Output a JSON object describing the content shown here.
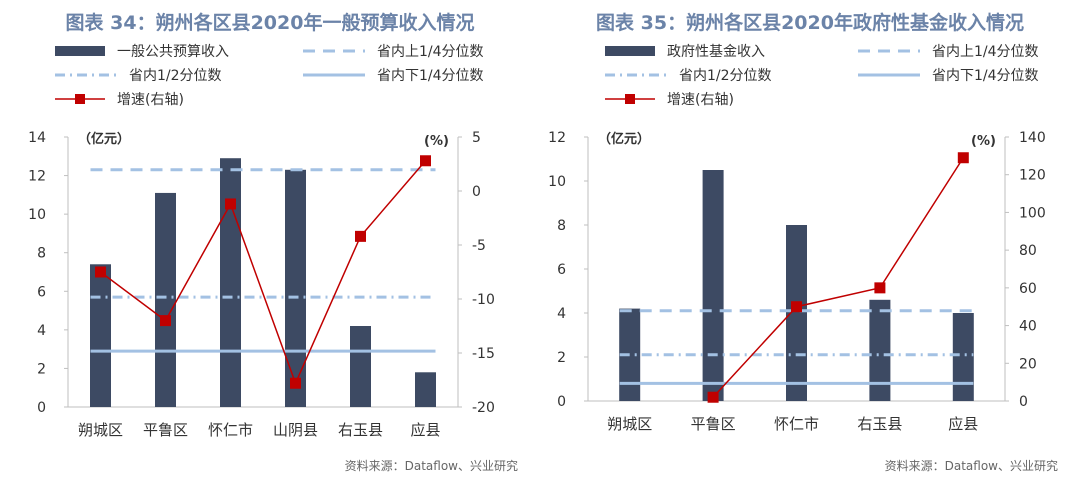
{
  "charts": [
    {
      "title": "图表 34：朔州各区县2020年一般预算收入情况",
      "source": "资料来源：Dataflow、兴业研究",
      "legend": [
        "一般公共预算收入",
        "省内上1/4分位数",
        "省内1/2分位数",
        "省内下1/4分位数",
        "增速(右轴)"
      ],
      "left_axis_label": "（亿元）",
      "right_axis_label": "(%)"
    },
    {
      "title": "图表 35：朔州各区县2020年政府性基金收入情况",
      "source": "资料来源：Dataflow、兴业研究",
      "legend": [
        "政府性基金收入",
        "省内上1/4分位数",
        "省内1/2分位数",
        "省内下1/4分位数",
        "增速(右轴)"
      ],
      "left_axis_label": "（亿元）",
      "right_axis_label": "(%)"
    }
  ],
  "chart_data": [
    {
      "type": "bar",
      "categories": [
        "朔城区",
        "平鲁区",
        "怀仁市",
        "山阴县",
        "右玉县",
        "应县"
      ],
      "series": [
        {
          "name": "一般公共预算收入",
          "kind": "bar",
          "axis": "left",
          "values": [
            7.4,
            11.1,
            12.9,
            12.3,
            4.2,
            1.8
          ]
        },
        {
          "name": "省内上1/4分位数",
          "kind": "reference",
          "style": "dashed",
          "axis": "left",
          "value": 12.3
        },
        {
          "name": "省内1/2分位数",
          "kind": "reference",
          "style": "dashdot",
          "axis": "left",
          "value": 5.7
        },
        {
          "name": "省内下1/4分位数",
          "kind": "reference",
          "style": "solid",
          "axis": "left",
          "value": 2.9
        },
        {
          "name": "增速(右轴)",
          "kind": "line",
          "axis": "right",
          "values": [
            -7.5,
            -12.0,
            -1.2,
            -17.8,
            -4.2,
            2.8
          ]
        }
      ],
      "ylim_left": [
        0,
        14
      ],
      "yticks_left": [
        0,
        2,
        4,
        6,
        8,
        10,
        12,
        14
      ],
      "ylim_right": [
        -20,
        5
      ],
      "yticks_right": [
        -20,
        -15,
        -10,
        -5,
        0,
        5
      ],
      "grid": false,
      "colors": {
        "bar": "#3d4a63",
        "reference": "#a3c1e3",
        "line": "#c00000"
      }
    },
    {
      "type": "bar",
      "categories": [
        "朔城区",
        "平鲁区",
        "怀仁市",
        "右玉县",
        "应县"
      ],
      "series": [
        {
          "name": "政府性基金收入",
          "kind": "bar",
          "axis": "left",
          "values": [
            4.2,
            10.5,
            8.0,
            4.6,
            4.0
          ]
        },
        {
          "name": "省内上1/4分位数",
          "kind": "reference",
          "style": "dashed",
          "axis": "left",
          "value": 4.1
        },
        {
          "name": "省内1/2分位数",
          "kind": "reference",
          "style": "dashdot",
          "axis": "left",
          "value": 2.1
        },
        {
          "name": "省内下1/4分位数",
          "kind": "reference",
          "style": "solid",
          "axis": "left",
          "value": 0.8
        },
        {
          "name": "增速(右轴)",
          "kind": "line",
          "axis": "right",
          "values": [
            null,
            2,
            50,
            60,
            129
          ]
        }
      ],
      "ylim_left": [
        0,
        12
      ],
      "yticks_left": [
        0,
        2,
        4,
        6,
        8,
        10,
        12
      ],
      "ylim_right": [
        0,
        140
      ],
      "yticks_right": [
        0,
        20,
        40,
        60,
        80,
        100,
        120,
        140
      ],
      "grid": false,
      "colors": {
        "bar": "#3d4a63",
        "reference": "#a3c1e3",
        "line": "#c00000"
      }
    }
  ]
}
